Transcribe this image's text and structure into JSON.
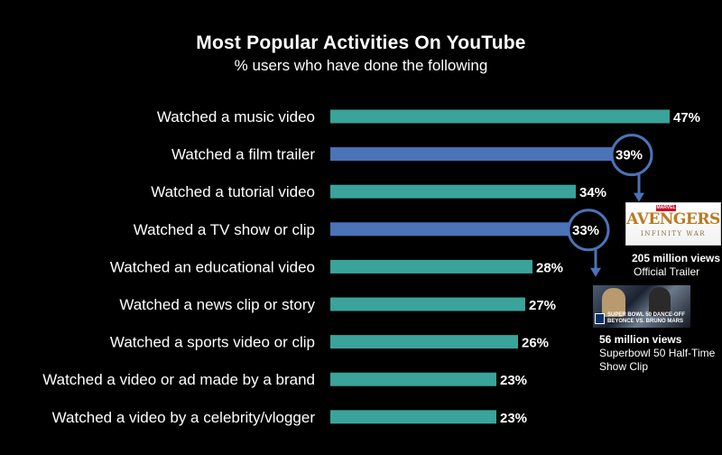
{
  "chart_data": {
    "type": "bar",
    "orientation": "horizontal",
    "title": "Most Popular Activities On YouTube",
    "subtitle": "% users who have done the following",
    "categories": [
      "Watched a music video",
      "Watched a film trailer",
      "Watched a tutorial video",
      "Watched a TV show or clip",
      "Watched an educational video",
      "Watched a news clip or story",
      "Watched a sports video or clip",
      "Watched a video or ad made by a brand",
      "Watched a video by a celebrity/vlogger"
    ],
    "values": [
      47,
      39,
      34,
      33,
      28,
      27,
      26,
      23,
      23
    ],
    "value_labels": [
      "47%",
      "39%",
      "34%",
      "33%",
      "28%",
      "27%",
      "26%",
      "23%",
      "23%"
    ],
    "highlighted": [
      false,
      true,
      false,
      true,
      false,
      false,
      false,
      false,
      false
    ],
    "xlim": [
      0,
      47
    ],
    "grid": false,
    "colors": {
      "bar": "#3aa39a",
      "highlight_bar": "#4a73b8",
      "callout": "#4a73b8",
      "background": "#000000"
    },
    "annotations": [
      {
        "target_category": "Watched a film trailer",
        "views": "205 million views",
        "description": "Official Trailer",
        "thumbnail": {
          "brand": "MARVEL STUDIOS",
          "title": "AVENGERS",
          "subtitle": "INFINITY WAR"
        }
      },
      {
        "target_category": "Watched a TV show or clip",
        "views": "56 million views",
        "description_lines": [
          "Superbowl 50 Half-Time",
          "Show Clip"
        ],
        "thumbnail": {
          "caption_line1": "SUPER BOWL 50 DANCE-OFF",
          "caption_line2": "BEYONCE VS. BRUNO MARS"
        }
      }
    ]
  }
}
